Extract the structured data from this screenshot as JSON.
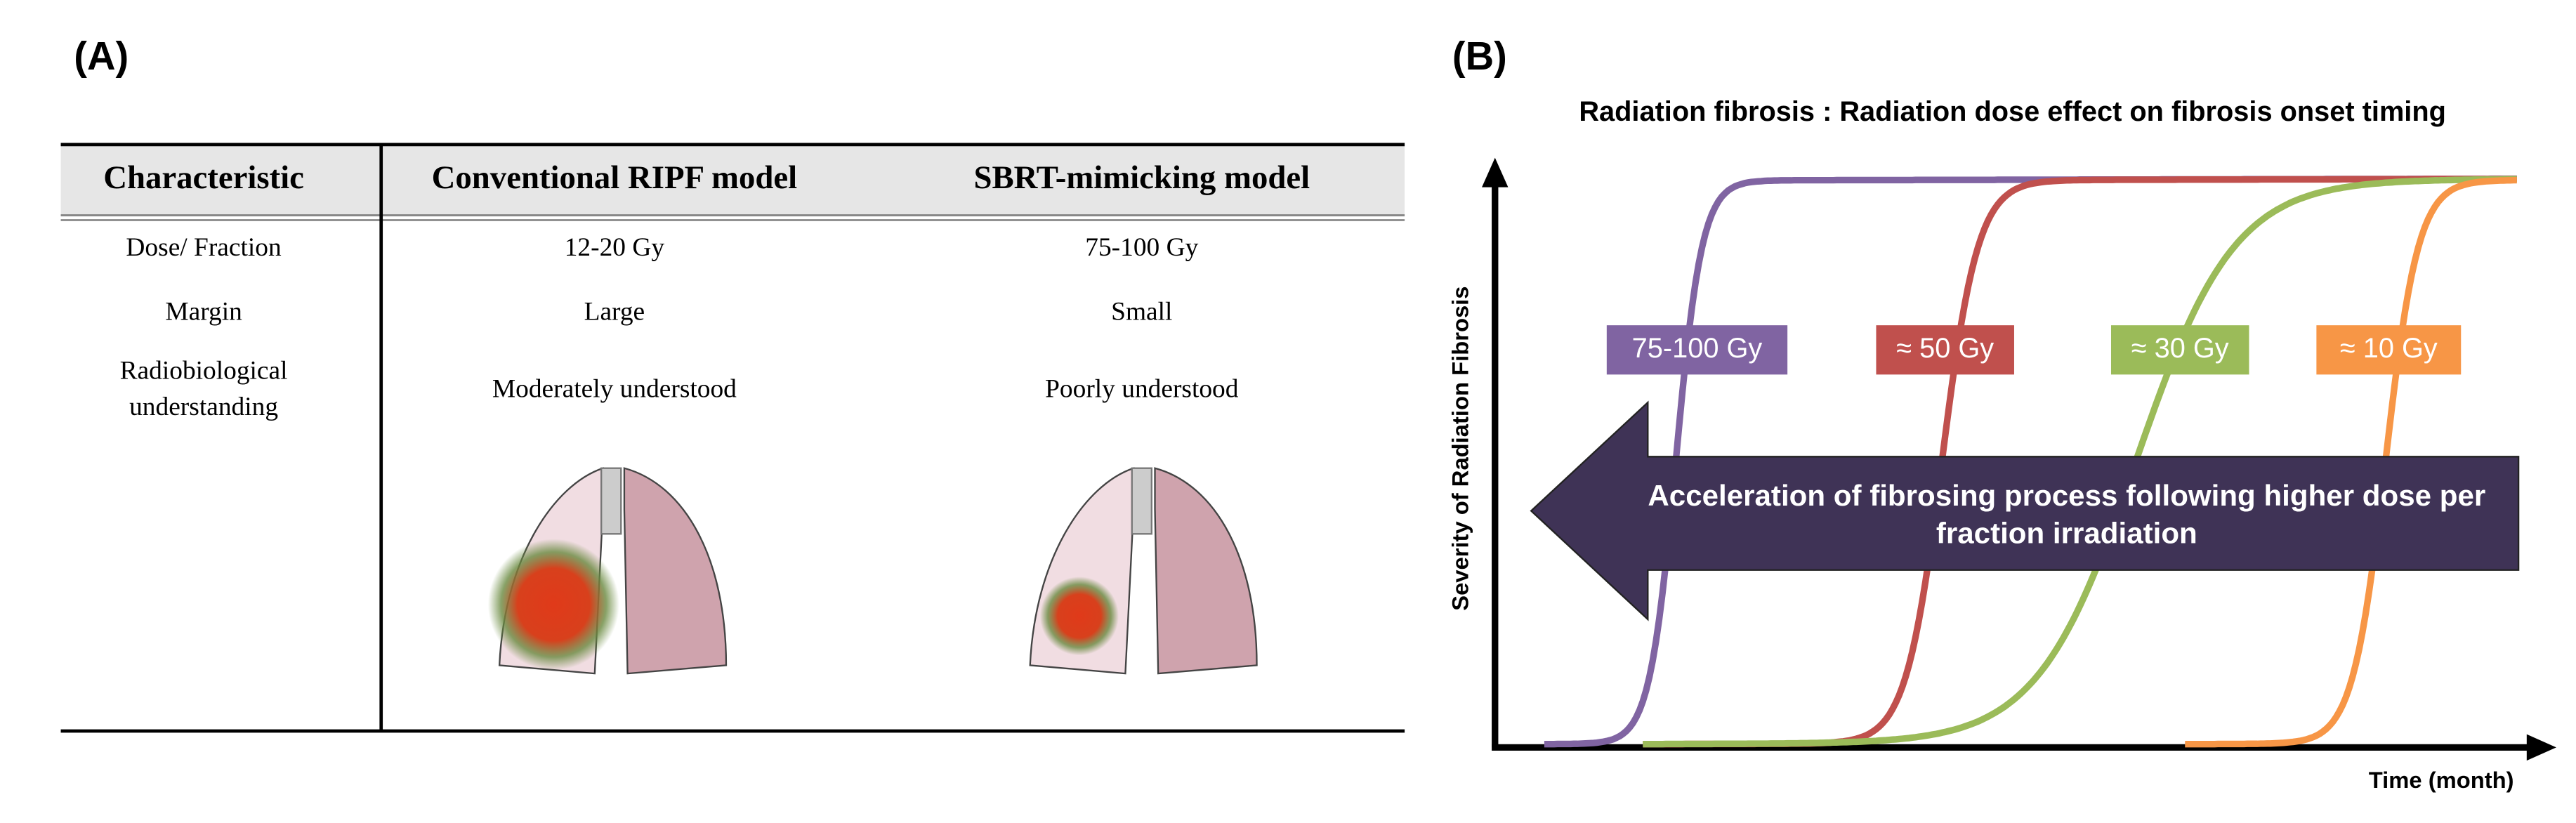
{
  "panel_a": {
    "label": "(A)",
    "table": {
      "header": [
        "Characteristic",
        "Conventional RIPF model",
        "SBRT-mimicking model"
      ],
      "rows": [
        [
          [
            "Dose/ Fraction"
          ],
          "12-20 Gy",
          "75-100 Gy"
        ],
        [
          [
            "Margin"
          ],
          "Large",
          "Small"
        ],
        [
          [
            "Radiobiological",
            "understanding"
          ],
          "Moderately  understood",
          "Poorly understood"
        ]
      ]
    }
  },
  "panel_b": {
    "label": "(B)",
    "title": "Radiation fibrosis : Radiation dose effect on fibrosis onset timing",
    "y_axis_label": "Severity of Radiation Fibrosis",
    "x_axis_label": "Time (month)",
    "curves": [
      {
        "label": "75-100 Gy",
        "color": "#8064a2"
      },
      {
        "label": "≈ 50 Gy",
        "color": "#c0504d"
      },
      {
        "label": "≈ 30 Gy",
        "color": "#9bbb59"
      },
      {
        "label": "≈ 10 Gy",
        "color": "#f79646"
      }
    ],
    "arrow_text": [
      "Acceleration of fibrosing process following higher dose per",
      "fraction irradiation"
    ]
  }
}
